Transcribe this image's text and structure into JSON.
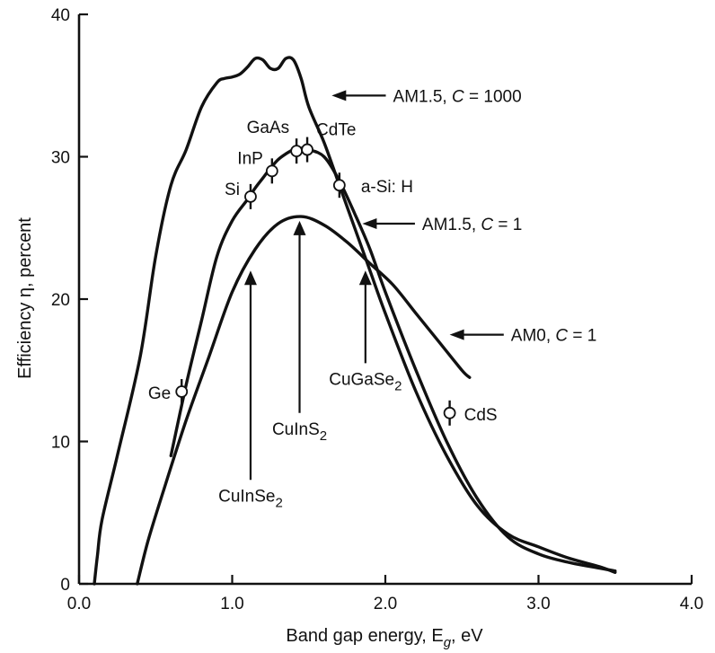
{
  "chart_data": {
    "type": "line",
    "xlabel": "Band gap energy, E",
    "xlabel_sub": "g",
    "xlabel_suffix": ", eV",
    "ylabel": "Efficiency η, percent",
    "xlim": [
      0,
      4
    ],
    "ylim": [
      0,
      40
    ],
    "xticks": [
      "0.0",
      "1.0",
      "2.0",
      "3.0",
      "4.0"
    ],
    "yticks": [
      "0",
      "10",
      "20",
      "30",
      "40"
    ],
    "series": [
      {
        "name": "AM1.5, C = 1000",
        "x": [
          0.1,
          0.12,
          0.15,
          0.25,
          0.4,
          0.5,
          0.6,
          0.7,
          0.8,
          0.9,
          0.95,
          1.0,
          1.05,
          1.1,
          1.15,
          1.2,
          1.25,
          1.3,
          1.35,
          1.4,
          1.45,
          1.5,
          1.6,
          1.7,
          1.8,
          1.9,
          2.0,
          2.2,
          2.4,
          2.6,
          2.8,
          3.0,
          3.2,
          3.4,
          3.5
        ],
        "y": [
          0,
          2,
          4.5,
          9,
          16,
          23,
          28,
          30.5,
          33.5,
          35.2,
          35.5,
          35.6,
          35.8,
          36.3,
          36.9,
          36.8,
          36.2,
          36.2,
          36.9,
          36.8,
          35.5,
          33.5,
          31,
          28,
          25,
          22,
          19,
          13.5,
          9,
          5.5,
          3.5,
          2.6,
          1.8,
          1.2,
          0.8
        ]
      },
      {
        "name": "AM1.5, C = 1",
        "x": [
          0.6,
          0.7,
          0.8,
          0.9,
          1.0,
          1.1,
          1.15,
          1.2,
          1.25,
          1.3,
          1.35,
          1.4,
          1.45,
          1.5,
          1.6,
          1.7,
          1.8,
          1.9,
          2.0,
          2.2,
          2.4,
          2.6,
          2.8,
          3.0,
          3.2,
          3.4,
          3.5
        ],
        "y": [
          9,
          14,
          18.5,
          23,
          25.5,
          27,
          27.8,
          28.5,
          29.2,
          29.8,
          30.2,
          30.5,
          30.6,
          30.5,
          30,
          28.3,
          26,
          23.5,
          20.5,
          15,
          10,
          6,
          3.3,
          2.1,
          1.5,
          1.1,
          0.9
        ]
      },
      {
        "name": "AM0, C = 1",
        "x": [
          0.38,
          0.45,
          0.55,
          0.7,
          0.85,
          1.0,
          1.15,
          1.3,
          1.45,
          1.6,
          1.75,
          1.9,
          2.05,
          2.2,
          2.35,
          2.5,
          2.55
        ],
        "y": [
          0,
          3,
          6.5,
          11.5,
          16,
          20.5,
          23.5,
          25.3,
          25.8,
          25.2,
          24,
          22.5,
          21,
          19,
          17,
          15,
          14.5
        ]
      }
    ],
    "points": [
      {
        "label": "Ge",
        "x": 0.67,
        "y": 13.5
      },
      {
        "label": "Si",
        "x": 1.12,
        "y": 27.2
      },
      {
        "label": "InP",
        "x": 1.26,
        "y": 29
      },
      {
        "label": "GaAs",
        "x": 1.42,
        "y": 30.4
      },
      {
        "label": "CdTe",
        "x": 1.49,
        "y": 30.5
      },
      {
        "label": "a-Si: H",
        "x": 1.7,
        "y": 28
      },
      {
        "label": "CdS",
        "x": 2.42,
        "y": 12
      }
    ],
    "arrow_labels": [
      {
        "label": "CuInSe",
        "sub": "2",
        "x": 1.12,
        "tip_y": 22,
        "tail_y": 7.3
      },
      {
        "label": "CuInS",
        "sub": "2",
        "x": 1.44,
        "tip_y": 25.5,
        "tail_y": 12
      },
      {
        "label": "CuGaSe",
        "sub": "2",
        "x": 1.87,
        "tip_y": 22,
        "tail_y": 15.5
      }
    ],
    "curve_labels": [
      {
        "text": "AM1.5, ",
        "italic": "C",
        "rest": " = 1000",
        "x": 2.05,
        "y": 34.3,
        "arrow_x": 1.65,
        "arrow_y": 34.3
      },
      {
        "text": "AM1.5, ",
        "italic": "C",
        "rest": " = 1",
        "x": 2.24,
        "y": 25.3,
        "arrow_x": 1.85,
        "arrow_y": 25.3
      },
      {
        "text": "AM0, ",
        "italic": "C",
        "rest": " = 1",
        "x": 2.82,
        "y": 17.5,
        "arrow_x": 2.42,
        "arrow_y": 17.5
      }
    ],
    "grid": false,
    "legend": "none"
  }
}
